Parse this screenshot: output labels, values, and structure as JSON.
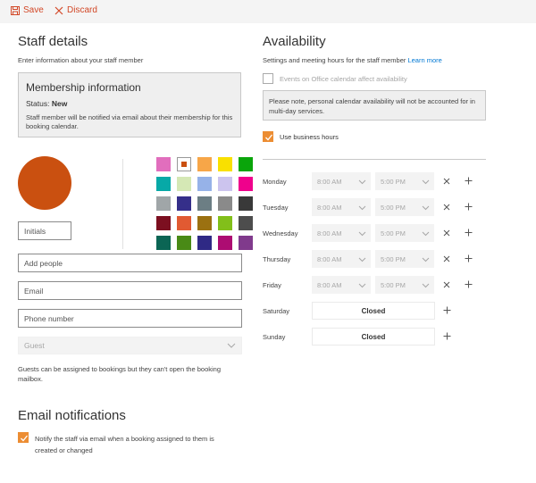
{
  "toolbar": {
    "save_label": "Save",
    "discard_label": "Discard",
    "accent": "#d24726"
  },
  "staff": {
    "heading": "Staff details",
    "subtitle": "Enter information about your staff member",
    "membership": {
      "title": "Membership information",
      "status_label": "Status:",
      "status_value": "New",
      "note": "Staff member will be notified via email about their membership for this booking calendar."
    },
    "avatar_color": "#ca5010",
    "swatches": [
      "#e16ebd",
      "#ca5010",
      "#f7a648",
      "#f9e000",
      "#0aa50b",
      "#07a9a7",
      "#d5e8b5",
      "#96b2e8",
      "#ccc4ee",
      "#ef018c",
      "#a0a6a8",
      "#352f8a",
      "#6c7e84",
      "#8a8a8a",
      "#393939",
      "#7c0f20",
      "#e15a32",
      "#9b7111",
      "#82bf1a",
      "#4d4d4d",
      "#0b6554",
      "#498a16",
      "#2f2985",
      "#ad0c72",
      "#803a8c"
    ],
    "selected_swatch": 1,
    "initials_placeholder": "Initials",
    "add_people_placeholder": "Add people",
    "email_placeholder": "Email",
    "phone_placeholder": "Phone number",
    "role_value": "Guest",
    "guest_note": "Guests can be assigned to bookings but they can't open the booking mailbox."
  },
  "email_notifications": {
    "heading": "Email notifications",
    "notify_label_line1": "Notify the staff via email when a booking assigned to them is",
    "notify_label_line2": "created or changed",
    "notify_checked": true
  },
  "availability": {
    "heading": "Availability",
    "subtitle": "Settings and meeting hours for the staff member",
    "learn_more": "Learn more",
    "events_label": "Events on Office calendar affect availability",
    "events_checked": false,
    "note": "Please note, personal calendar availability will not be accounted for in multi-day services.",
    "business_hours_label": "Use business hours",
    "business_hours_checked": true,
    "days": [
      {
        "name": "Monday",
        "start": "8:00 AM",
        "end": "5:00 PM",
        "closed": false
      },
      {
        "name": "Tuesday",
        "start": "8:00 AM",
        "end": "5:00 PM",
        "closed": false
      },
      {
        "name": "Wednesday",
        "start": "8:00 AM",
        "end": "5:00 PM",
        "closed": false
      },
      {
        "name": "Thursday",
        "start": "8:00 AM",
        "end": "5:00 PM",
        "closed": false
      },
      {
        "name": "Friday",
        "start": "8:00 AM",
        "end": "5:00 PM",
        "closed": false
      },
      {
        "name": "Saturday",
        "closed": true,
        "closed_label": "Closed"
      },
      {
        "name": "Sunday",
        "closed": true,
        "closed_label": "Closed"
      }
    ]
  }
}
